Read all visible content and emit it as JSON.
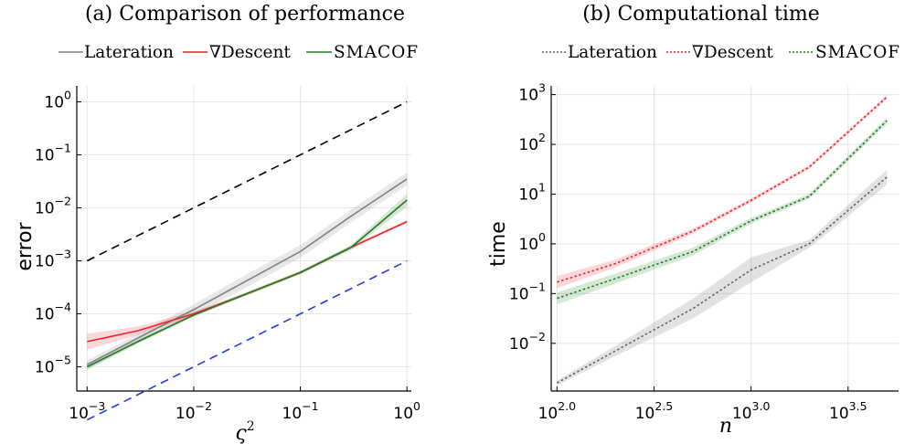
{
  "chart_data": [
    {
      "type": "line",
      "title": "(a) Comparison of performance",
      "xlabel": "ς",
      "xlabel_sup": "2",
      "ylabel": "error",
      "xscale": "log",
      "yscale": "log",
      "xlim": [
        0.0008,
        1.1
      ],
      "ylim": [
        3.5e-06,
        2
      ],
      "grid": true,
      "legend_position": "top",
      "xticks": [
        {
          "base": "10",
          "exp": "−3"
        },
        {
          "base": "10",
          "exp": "−2"
        },
        {
          "base": "10",
          "exp": "−1"
        },
        {
          "base": "10",
          "exp": "0"
        }
      ],
      "yticks": [
        {
          "base": "10",
          "exp": "−5"
        },
        {
          "base": "10",
          "exp": "−4"
        },
        {
          "base": "10",
          "exp": "−3"
        },
        {
          "base": "10",
          "exp": "−2"
        },
        {
          "base": "10",
          "exp": "−1"
        },
        {
          "base": "10",
          "exp": "0"
        }
      ],
      "series": [
        {
          "name": "Lateration",
          "color": "#808080",
          "style": "solid",
          "x": [
            0.001,
            0.003,
            0.01,
            0.03,
            0.1,
            0.3,
            1
          ],
          "y": [
            1.1e-05,
            3.5e-05,
            0.00012,
            0.0004,
            0.0015,
            0.007,
            0.035
          ],
          "band": [
            0.08,
            0.08,
            0.1,
            0.12,
            0.12,
            0.12,
            0.12
          ]
        },
        {
          "name": "∇Descent",
          "color": "#e8242b",
          "style": "solid",
          "x": [
            0.001,
            0.003,
            0.01,
            0.03,
            0.1,
            0.3,
            1
          ],
          "y": [
            3e-05,
            4.8e-05,
            0.0001,
            0.00023,
            0.0006,
            0.0018,
            0.0055
          ],
          "band": [
            0.15,
            0.08,
            0.05,
            0.03,
            0.03,
            0.03,
            0.03
          ]
        },
        {
          "name": "SMACOF",
          "color": "#1f7a1f",
          "style": "solid",
          "x": [
            0.001,
            0.003,
            0.01,
            0.03,
            0.1,
            0.3,
            1
          ],
          "y": [
            1e-05,
            3e-05,
            9.5e-05,
            0.00023,
            0.0006,
            0.0018,
            0.014
          ],
          "band": [
            0.06,
            0.04,
            0.03,
            0.03,
            0.03,
            0.05,
            0.12
          ]
        },
        {
          "color": "#000000",
          "style": "dashed",
          "x": [
            0.001,
            1
          ],
          "y": [
            0.001,
            1
          ]
        },
        {
          "color": "#1f3fe0",
          "style": "dashed",
          "x": [
            0.001,
            1
          ],
          "y": [
            1e-06,
            0.001
          ]
        }
      ]
    },
    {
      "type": "line",
      "title": "(b) Computational time",
      "xlabel": "n",
      "ylabel": "time",
      "xscale": "log",
      "yscale": "log",
      "xlim": [
        1.97,
        3.76
      ],
      "ylim": [
        0.0011,
        1500
      ],
      "grid": true,
      "legend_position": "top",
      "xticks": [
        {
          "base": "10",
          "exp": "2.0"
        },
        {
          "base": "10",
          "exp": "2.5"
        },
        {
          "base": "10",
          "exp": "3.0"
        },
        {
          "base": "10",
          "exp": "3.5"
        }
      ],
      "yticks": [
        {
          "base": "10",
          "exp": "−2"
        },
        {
          "base": "10",
          "exp": "−1"
        },
        {
          "base": "10",
          "exp": "0"
        },
        {
          "base": "10",
          "exp": "1"
        },
        {
          "base": "10",
          "exp": "2"
        },
        {
          "base": "10",
          "exp": "3"
        }
      ],
      "series": [
        {
          "name": "Lateration",
          "color": "#606060",
          "style": "dotted",
          "x": [
            2.0,
            2.3,
            2.7,
            3.0,
            3.3,
            3.7
          ],
          "y": [
            0.0016,
            0.007,
            0.05,
            0.3,
            1.0,
            22
          ],
          "band": [
            0.05,
            0.1,
            0.2,
            0.25,
            0.08,
            0.15
          ]
        },
        {
          "name": "∇Descent",
          "color": "#e8242b",
          "style": "dotted",
          "x": [
            2.0,
            2.3,
            2.7,
            3.0,
            3.3,
            3.7
          ],
          "y": [
            0.17,
            0.4,
            1.8,
            7.5,
            35,
            900
          ],
          "band": [
            0.12,
            0.08,
            0.05,
            0.04,
            0.04,
            0.04
          ]
        },
        {
          "name": "SMACOF",
          "color": "#1f7a1f",
          "style": "dotted",
          "x": [
            2.0,
            2.3,
            2.7,
            3.0,
            3.3,
            3.7
          ],
          "y": [
            0.08,
            0.2,
            0.7,
            2.9,
            9,
            300
          ],
          "band": [
            0.12,
            0.1,
            0.08,
            0.06,
            0.05,
            0.06
          ]
        }
      ]
    }
  ]
}
